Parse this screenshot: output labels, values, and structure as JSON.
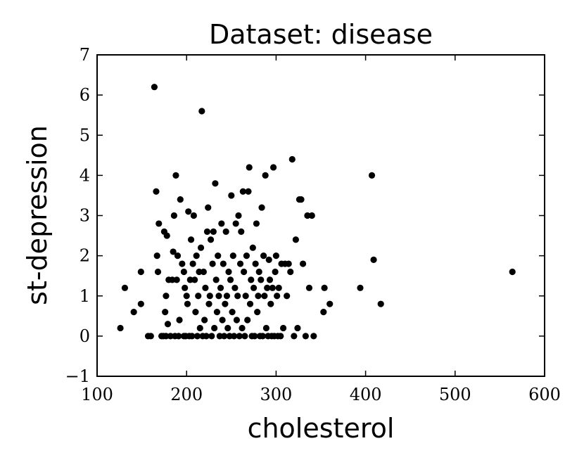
{
  "chart_data": {
    "type": "scatter",
    "title": "Dataset: disease",
    "xlabel": "cholesterol",
    "ylabel": "st-depression",
    "xlim": [
      100,
      600
    ],
    "ylim": [
      -1,
      7
    ],
    "xticks": [
      "100",
      "200",
      "300",
      "400",
      "500",
      "600"
    ],
    "yticks": [
      "−1",
      "0",
      "1",
      "2",
      "3",
      "4",
      "5",
      "6",
      "7"
    ],
    "grid": false,
    "marker_color": "#000000",
    "points": [
      [
        126,
        0.2
      ],
      [
        131,
        1.2
      ],
      [
        141,
        0.6
      ],
      [
        149,
        1.6
      ],
      [
        149,
        0.8
      ],
      [
        157,
        0.0
      ],
      [
        160,
        0.0
      ],
      [
        164,
        6.2
      ],
      [
        166,
        3.6
      ],
      [
        167,
        2.0
      ],
      [
        168,
        1.6
      ],
      [
        169,
        2.8
      ],
      [
        172,
        0.0
      ],
      [
        174,
        0.0
      ],
      [
        175,
        2.6
      ],
      [
        176,
        0.6
      ],
      [
        177,
        1.0
      ],
      [
        177,
        0.0
      ],
      [
        178,
        2.5
      ],
      [
        179,
        0.3
      ],
      [
        180,
        1.4
      ],
      [
        182,
        0.0
      ],
      [
        184,
        1.4
      ],
      [
        185,
        2.1
      ],
      [
        186,
        3.0
      ],
      [
        187,
        0.0
      ],
      [
        188,
        4.0
      ],
      [
        189,
        1.4
      ],
      [
        190,
        2.0
      ],
      [
        191,
        0.0
      ],
      [
        192,
        0.4
      ],
      [
        193,
        3.4
      ],
      [
        195,
        1.8
      ],
      [
        197,
        0.0
      ],
      [
        197,
        1.6
      ],
      [
        198,
        1.2
      ],
      [
        199,
        0.0
      ],
      [
        200,
        1.0
      ],
      [
        201,
        0.8
      ],
      [
        202,
        3.1
      ],
      [
        203,
        0.0
      ],
      [
        204,
        1.4
      ],
      [
        205,
        2.4
      ],
      [
        206,
        0.0
      ],
      [
        207,
        1.8
      ],
      [
        208,
        3.0
      ],
      [
        209,
        1.4
      ],
      [
        210,
        0.6
      ],
      [
        211,
        2.0
      ],
      [
        212,
        0.0
      ],
      [
        213,
        1.0
      ],
      [
        214,
        1.6
      ],
      [
        215,
        0.2
      ],
      [
        216,
        2.2
      ],
      [
        217,
        5.6
      ],
      [
        218,
        0.0
      ],
      [
        219,
        1.6
      ],
      [
        220,
        0.4
      ],
      [
        221,
        1.2
      ],
      [
        222,
        0.0
      ],
      [
        223,
        2.6
      ],
      [
        224,
        3.2
      ],
      [
        225,
        0.8
      ],
      [
        226,
        1.0
      ],
      [
        227,
        2.4
      ],
      [
        228,
        0.0
      ],
      [
        229,
        1.8
      ],
      [
        230,
        2.6
      ],
      [
        231,
        0.2
      ],
      [
        232,
        3.8
      ],
      [
        233,
        1.4
      ],
      [
        234,
        0.6
      ],
      [
        235,
        2.0
      ],
      [
        236,
        1.0
      ],
      [
        237,
        0.0
      ],
      [
        238,
        1.2
      ],
      [
        239,
        2.8
      ],
      [
        240,
        0.4
      ],
      [
        241,
        1.8
      ],
      [
        242,
        0.0
      ],
      [
        243,
        0.8
      ],
      [
        244,
        2.6
      ],
      [
        245,
        1.0
      ],
      [
        246,
        0.2
      ],
      [
        247,
        1.6
      ],
      [
        248,
        0.0
      ],
      [
        249,
        1.4
      ],
      [
        250,
        3.5
      ],
      [
        251,
        0.6
      ],
      [
        252,
        2.0
      ],
      [
        253,
        0.0
      ],
      [
        254,
        1.2
      ],
      [
        255,
        2.8
      ],
      [
        256,
        0.4
      ],
      [
        257,
        1.0
      ],
      [
        258,
        3.0
      ],
      [
        259,
        0.0
      ],
      [
        260,
        1.8
      ],
      [
        261,
        2.6
      ],
      [
        262,
        0.2
      ],
      [
        263,
        3.6
      ],
      [
        264,
        1.6
      ],
      [
        265,
        0.0
      ],
      [
        266,
        1.0
      ],
      [
        267,
        2.0
      ],
      [
        268,
        0.4
      ],
      [
        269,
        3.6
      ],
      [
        270,
        4.2
      ],
      [
        271,
        0.8
      ],
      [
        272,
        1.4
      ],
      [
        273,
        0.0
      ],
      [
        274,
        2.2
      ],
      [
        275,
        1.2
      ],
      [
        276,
        0.0
      ],
      [
        277,
        1.8
      ],
      [
        278,
        2.8
      ],
      [
        279,
        0.6
      ],
      [
        280,
        1.0
      ],
      [
        281,
        1.6
      ],
      [
        282,
        0.0
      ],
      [
        283,
        1.4
      ],
      [
        284,
        3.2
      ],
      [
        285,
        0.0
      ],
      [
        286,
        2.0
      ],
      [
        287,
        1.0
      ],
      [
        288,
        4.0
      ],
      [
        289,
        0.2
      ],
      [
        290,
        1.2
      ],
      [
        291,
        0.0
      ],
      [
        292,
        1.9
      ],
      [
        293,
        1.4
      ],
      [
        294,
        0.8
      ],
      [
        295,
        0.0
      ],
      [
        296,
        1.2
      ],
      [
        297,
        4.2
      ],
      [
        298,
        0.0
      ],
      [
        299,
        1.6
      ],
      [
        300,
        2.0
      ],
      [
        301,
        1.0
      ],
      [
        302,
        0.0
      ],
      [
        303,
        1.2
      ],
      [
        305,
        0.0
      ],
      [
        306,
        1.8
      ],
      [
        308,
        0.2
      ],
      [
        310,
        1.8
      ],
      [
        312,
        1.0
      ],
      [
        314,
        1.8
      ],
      [
        316,
        1.6
      ],
      [
        318,
        4.4
      ],
      [
        320,
        0.0
      ],
      [
        322,
        2.4
      ],
      [
        324,
        0.2
      ],
      [
        326,
        3.4
      ],
      [
        328,
        3.4
      ],
      [
        330,
        1.8
      ],
      [
        333,
        0.0
      ],
      [
        335,
        3.0
      ],
      [
        337,
        1.2
      ],
      [
        340,
        3.0
      ],
      [
        342,
        0.0
      ],
      [
        353,
        0.6
      ],
      [
        354,
        1.2
      ],
      [
        360,
        0.8
      ],
      [
        394,
        1.2
      ],
      [
        407,
        4.0
      ],
      [
        409,
        1.9
      ],
      [
        417,
        0.8
      ],
      [
        564,
        1.6
      ]
    ]
  }
}
